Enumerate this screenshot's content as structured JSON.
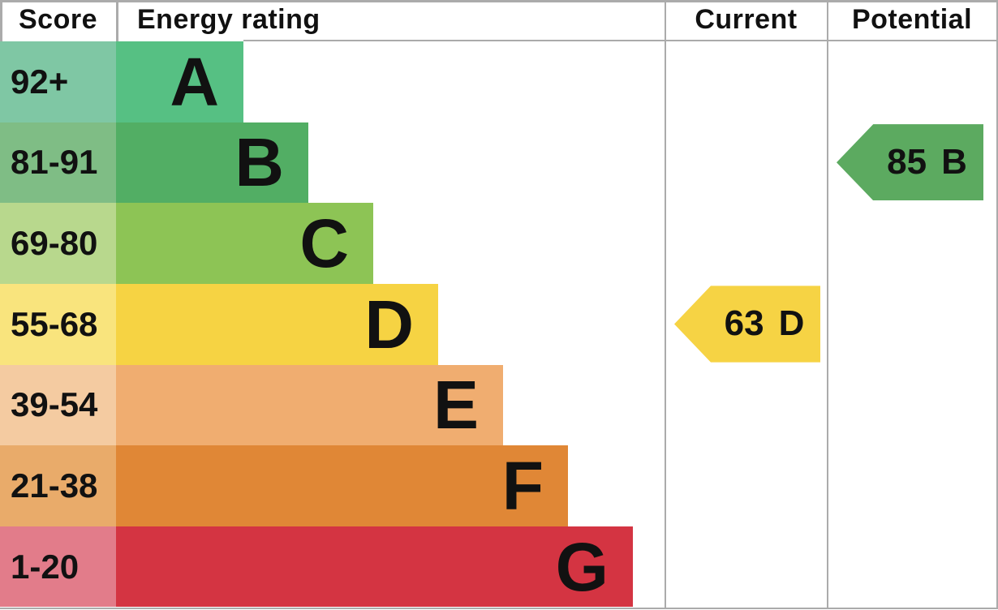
{
  "header": {
    "score": "Score",
    "energy_rating": "Energy rating",
    "current": "Current",
    "potential": "Potential"
  },
  "bands": [
    {
      "score_range": "92+",
      "letter": "A",
      "bar_color": "#56c083",
      "score_bg": "#7fc7a4"
    },
    {
      "score_range": "81-91",
      "letter": "B",
      "bar_color": "#52ae64",
      "score_bg": "#7fbd85"
    },
    {
      "score_range": "69-80",
      "letter": "C",
      "bar_color": "#8dc455",
      "score_bg": "#b8d88d"
    },
    {
      "score_range": "55-68",
      "letter": "D",
      "bar_color": "#f6d343",
      "score_bg": "#f9e47d"
    },
    {
      "score_range": "39-54",
      "letter": "E",
      "bar_color": "#f0ad70",
      "score_bg": "#f4cba1"
    },
    {
      "score_range": "21-38",
      "letter": "F",
      "bar_color": "#e08736",
      "score_bg": "#e9ab6a"
    },
    {
      "score_range": "1-20",
      "letter": "G",
      "bar_color": "#d43442",
      "score_bg": "#e27c8a"
    }
  ],
  "markers": {
    "current": {
      "value": "63",
      "letter": "D",
      "color": "#f6d344"
    },
    "potential": {
      "value": "85",
      "letter": "B",
      "color": "#5caa60"
    }
  },
  "grid_color": "#ababab",
  "chart_data": {
    "type": "bar",
    "title": "Energy rating",
    "categories": [
      "A",
      "B",
      "C",
      "D",
      "E",
      "F",
      "G"
    ],
    "band_score_ranges": [
      "92+",
      "81-91",
      "69-80",
      "55-68",
      "39-54",
      "21-38",
      "1-20"
    ],
    "band_colors": [
      "#56c083",
      "#52ae64",
      "#8dc455",
      "#f6d343",
      "#f0ad70",
      "#e08736",
      "#d43442"
    ],
    "bar_relative_lengths": [
      1,
      2,
      3,
      4,
      5,
      6,
      7
    ],
    "legend_position": "none",
    "grid": false,
    "columns": [
      "Score",
      "Energy rating",
      "Current",
      "Potential"
    ],
    "current_rating": {
      "score": 63,
      "band": "D"
    },
    "potential_rating": {
      "score": 85,
      "band": "B"
    }
  }
}
